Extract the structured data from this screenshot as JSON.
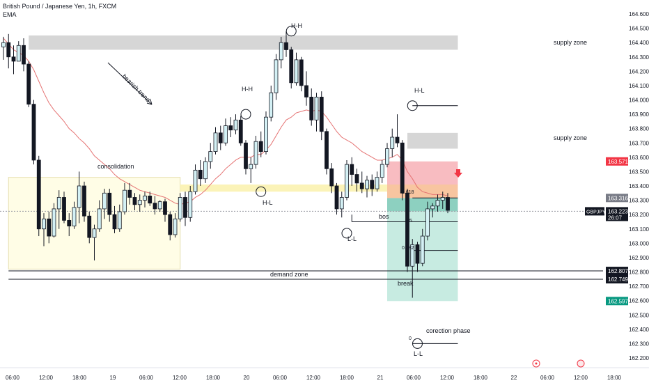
{
  "header": {
    "title": "British Pound / Japanese Yen, 1h, FXCM",
    "indicator": "EMA"
  },
  "colors": {
    "bull_body": "#d4f1f5",
    "bear_body": "#131722",
    "wick": "#131722",
    "ema": "#e57373",
    "supply": "#d6d6d6",
    "consolidation": "#fffde6",
    "demand_band": "#fbf3b8",
    "stop_zone": "#f8bcc1",
    "target_zone": "#c7ebe1",
    "target_zone_dark": "#8dd0c0",
    "arrow": "#f23645"
  },
  "chart_data": {
    "type": "candlestick",
    "symbol": "GBPJPY",
    "timeframe": "1h",
    "x_tick_labels": [
      "06:00",
      "12:00",
      "18:00",
      "19",
      "06:00",
      "12:00",
      "18:00",
      "20",
      "06:00",
      "12:00",
      "18:00",
      "21",
      "06:00",
      "12:00",
      "18:00",
      "22",
      "06:00",
      "12:00",
      "18:00"
    ],
    "y_ticks": [
      162.2,
      162.3,
      162.4,
      162.5,
      162.6,
      162.7,
      162.8,
      162.9,
      163.0,
      163.1,
      163.2,
      163.3,
      163.4,
      163.5,
      163.6,
      163.7,
      163.8,
      163.9,
      164.0,
      164.1,
      164.2,
      164.3,
      164.4,
      164.5,
      164.6
    ],
    "y_tick_labels": [
      "162.200",
      "162.300",
      "162.400",
      "162.500",
      "162.600",
      "162.700",
      "162.800",
      "162.900",
      "163.000",
      "163.100",
      "163.200",
      "163.300",
      "163.400",
      "163.500",
      "163.600",
      "163.700",
      "163.800",
      "163.900",
      "164.000",
      "164.100",
      "164.200",
      "164.300",
      "164.400",
      "164.500",
      "164.600"
    ],
    "ylim": [
      162.17,
      164.7
    ],
    "current_price": 163.223,
    "countdown": "26:07",
    "price_tags": [
      {
        "label": "163.571",
        "value": 163.571,
        "color": "#f23645"
      },
      {
        "label": "163.316",
        "value": 163.316,
        "color": "#787b86"
      },
      {
        "label": "162.807",
        "value": 162.807,
        "color": "#131722"
      },
      {
        "label": "162.749",
        "value": 162.749,
        "color": "#131722"
      },
      {
        "label": "162.597",
        "value": 162.597,
        "color": "#089981"
      }
    ],
    "candles": [
      [
        164.37,
        164.44,
        164.28,
        164.4
      ],
      [
        164.4,
        164.46,
        164.22,
        164.3
      ],
      [
        164.3,
        164.38,
        164.18,
        164.27
      ],
      [
        164.27,
        164.41,
        164.27,
        164.38
      ],
      [
        164.38,
        164.43,
        164.2,
        164.25
      ],
      [
        164.25,
        164.27,
        163.95,
        163.97
      ],
      [
        163.97,
        164.0,
        163.55,
        163.58
      ],
      [
        163.58,
        163.61,
        163.05,
        163.1
      ],
      [
        163.1,
        163.21,
        162.98,
        163.17
      ],
      [
        163.17,
        163.22,
        163.0,
        163.05
      ],
      [
        163.05,
        163.28,
        163.04,
        163.24
      ],
      [
        163.24,
        163.37,
        163.1,
        163.32
      ],
      [
        163.32,
        163.36,
        163.14,
        163.16
      ],
      [
        163.16,
        163.21,
        163.05,
        163.12
      ],
      [
        163.12,
        163.29,
        163.1,
        163.25
      ],
      [
        163.25,
        163.5,
        163.14,
        163.4
      ],
      [
        163.4,
        163.43,
        163.15,
        163.19
      ],
      [
        163.19,
        163.22,
        163.0,
        163.04
      ],
      [
        163.04,
        163.13,
        162.88,
        163.1
      ],
      [
        163.1,
        163.3,
        163.08,
        163.24
      ],
      [
        163.24,
        163.38,
        163.17,
        163.35
      ],
      [
        163.35,
        163.38,
        163.15,
        163.2
      ],
      [
        163.2,
        163.26,
        163.07,
        163.1
      ],
      [
        163.1,
        163.27,
        163.08,
        163.22
      ],
      [
        163.22,
        163.42,
        163.2,
        163.37
      ],
      [
        163.37,
        163.42,
        163.27,
        163.32
      ],
      [
        163.32,
        163.35,
        163.23,
        163.27
      ],
      [
        163.27,
        163.34,
        163.22,
        163.3
      ],
      [
        163.3,
        163.36,
        163.25,
        163.33
      ],
      [
        163.33,
        163.36,
        163.26,
        163.28
      ],
      [
        163.28,
        163.33,
        163.2,
        163.24
      ],
      [
        163.24,
        163.3,
        163.22,
        163.29
      ],
      [
        163.29,
        163.31,
        163.15,
        163.2
      ],
      [
        163.2,
        163.22,
        163.02,
        163.06
      ],
      [
        163.06,
        163.21,
        163.04,
        163.17
      ],
      [
        163.17,
        163.35,
        163.15,
        163.32
      ],
      [
        163.32,
        163.36,
        163.12,
        163.18
      ],
      [
        163.18,
        163.4,
        163.15,
        163.36
      ],
      [
        163.36,
        163.55,
        163.34,
        163.51
      ],
      [
        163.51,
        163.58,
        163.4,
        163.45
      ],
      [
        163.45,
        163.6,
        163.42,
        163.57
      ],
      [
        163.57,
        163.7,
        163.52,
        163.64
      ],
      [
        163.64,
        163.81,
        163.62,
        163.77
      ],
      [
        163.77,
        163.82,
        163.65,
        163.7
      ],
      [
        163.7,
        163.87,
        163.68,
        163.82
      ],
      [
        163.82,
        163.88,
        163.74,
        163.79
      ],
      [
        163.79,
        163.9,
        163.76,
        163.86
      ],
      [
        163.86,
        163.89,
        163.68,
        163.7
      ],
      [
        163.7,
        163.72,
        163.48,
        163.52
      ],
      [
        163.52,
        163.6,
        163.42,
        163.55
      ],
      [
        163.55,
        163.75,
        163.52,
        163.71
      ],
      [
        163.71,
        163.78,
        163.6,
        163.64
      ],
      [
        163.64,
        163.92,
        163.62,
        163.88
      ],
      [
        163.88,
        164.1,
        163.85,
        164.05
      ],
      [
        164.05,
        164.32,
        164.0,
        164.28
      ],
      [
        164.28,
        164.44,
        164.22,
        164.4
      ],
      [
        164.4,
        164.48,
        164.3,
        164.35
      ],
      [
        164.35,
        164.37,
        164.08,
        164.12
      ],
      [
        164.12,
        164.33,
        164.1,
        164.28
      ],
      [
        164.28,
        164.3,
        164.06,
        164.1
      ],
      [
        164.1,
        164.2,
        163.96,
        164.02
      ],
      [
        164.02,
        164.08,
        163.82,
        163.86
      ],
      [
        163.86,
        164.05,
        163.78,
        164.02
      ],
      [
        164.02,
        164.06,
        163.72,
        163.78
      ],
      [
        163.78,
        163.8,
        163.48,
        163.52
      ],
      [
        163.52,
        163.56,
        163.35,
        163.4
      ],
      [
        163.4,
        163.42,
        163.2,
        163.24
      ],
      [
        163.24,
        163.36,
        163.18,
        163.32
      ],
      [
        163.32,
        163.58,
        163.3,
        163.55
      ],
      [
        163.55,
        163.6,
        163.4,
        163.48
      ],
      [
        163.48,
        163.52,
        163.36,
        163.42
      ],
      [
        163.42,
        163.5,
        163.35,
        163.38
      ],
      [
        163.38,
        163.47,
        163.32,
        163.44
      ],
      [
        163.44,
        163.48,
        163.33,
        163.38
      ],
      [
        163.38,
        163.5,
        163.36,
        163.46
      ],
      [
        163.46,
        163.58,
        163.42,
        163.55
      ],
      [
        163.55,
        163.7,
        163.53,
        163.66
      ],
      [
        163.66,
        163.8,
        163.6,
        163.74
      ],
      [
        163.74,
        163.9,
        163.67,
        163.7
      ],
      [
        163.7,
        163.72,
        163.3,
        163.35
      ],
      [
        163.35,
        163.38,
        162.8,
        162.84
      ],
      [
        162.84,
        163.03,
        162.62,
        162.99
      ],
      [
        162.99,
        163.01,
        162.8,
        162.86
      ],
      [
        162.86,
        163.1,
        162.84,
        163.05
      ],
      [
        163.05,
        163.29,
        163.02,
        163.24
      ],
      [
        163.24,
        163.28,
        163.18,
        163.26
      ],
      [
        163.26,
        163.34,
        163.22,
        163.3
      ],
      [
        163.3,
        163.36,
        163.24,
        163.32
      ],
      [
        163.32,
        163.35,
        163.21,
        163.23
      ]
    ]
  },
  "ema_values": [
    164.43,
    164.39,
    164.35,
    164.33,
    164.31,
    164.27,
    164.21,
    164.13,
    164.05,
    163.98,
    163.93,
    163.89,
    163.85,
    163.8,
    163.77,
    163.73,
    163.7,
    163.66,
    163.61,
    163.58,
    163.55,
    163.52,
    163.48,
    163.45,
    163.43,
    163.41,
    163.39,
    163.37,
    163.36,
    163.35,
    163.34,
    163.33,
    163.32,
    163.3,
    163.28,
    163.27,
    163.28,
    163.29,
    163.32,
    163.34,
    163.37,
    163.41,
    163.45,
    163.48,
    163.52,
    163.55,
    163.58,
    163.6,
    163.6,
    163.6,
    163.62,
    163.62,
    163.65,
    163.69,
    163.75,
    163.81,
    163.86,
    163.88,
    163.91,
    163.92,
    163.93,
    163.92,
    163.93,
    163.92,
    163.88,
    163.83,
    163.78,
    163.74,
    163.72,
    163.7,
    163.67,
    163.64,
    163.62,
    163.6,
    163.58,
    163.58,
    163.59,
    163.6,
    163.62,
    163.58,
    163.5,
    163.45,
    163.39,
    163.36,
    163.35,
    163.34,
    163.34,
    163.34,
    163.33
  ],
  "zones": {
    "supply1": {
      "label": "supply zone",
      "top": 164.45,
      "bottom": 164.35,
      "c0": 5,
      "c1": 90
    },
    "supply2": {
      "label": "supply zone",
      "top": 163.77,
      "bottom": 163.66,
      "c0": 80,
      "c1": 90
    },
    "consolidation": {
      "label": "consolidation",
      "top": 163.46,
      "bottom": 162.82,
      "c0": 1,
      "c1": 35
    },
    "demand_band": {
      "top": 163.41,
      "bottom": 163.36,
      "c0": 35,
      "c1": 90
    },
    "stop": {
      "top": 163.571,
      "bottom": 163.316,
      "c0": 76,
      "c1": 90
    },
    "target": {
      "top": 163.316,
      "bottom": 162.597,
      "c0": 76,
      "c1": 90
    }
  },
  "annotations": {
    "bearish_trend": "bearish trend",
    "hh1": "H-H",
    "hh2": "H-H",
    "hl1": "H-L",
    "hl2": "H-L",
    "ll1": "L-L",
    "ll2": "L-L",
    "bos": "bos",
    "demand_zone": "demand zone",
    "break": "break",
    "correction": "corection phase",
    "fib_618": "0.618",
    "fib_5": "0.5",
    "fib_382": "0.382",
    "fib_0": "0"
  },
  "axis": {
    "symbol_tag": "GBPJPY"
  }
}
